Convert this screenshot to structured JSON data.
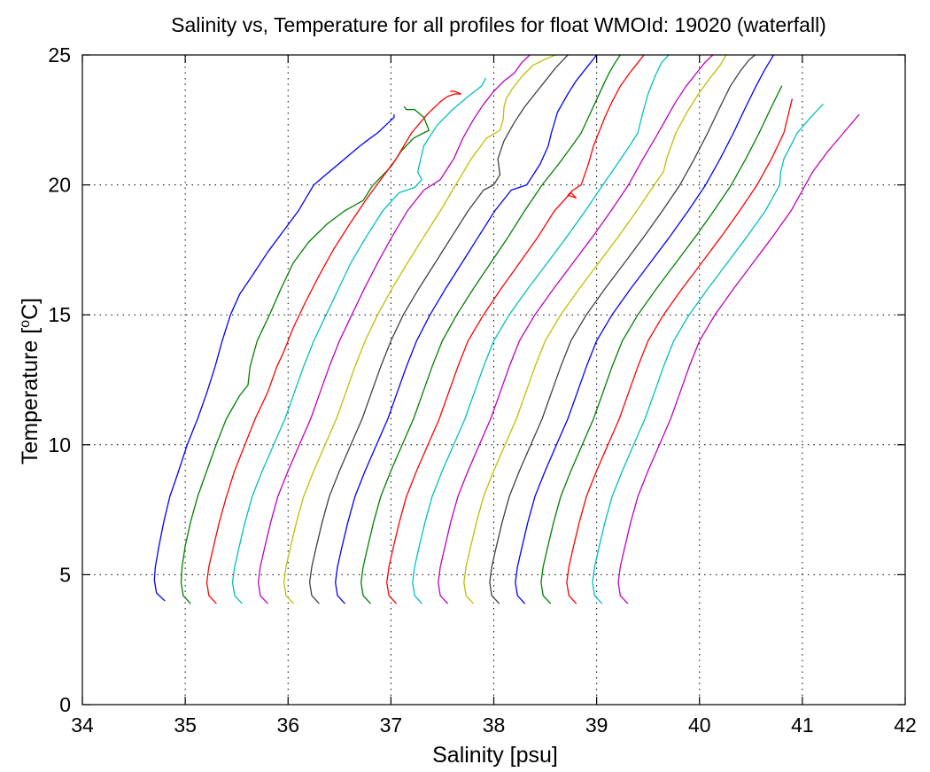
{
  "chart_data": {
    "type": "line",
    "title": "Salinity vs, Temperature for all profiles for float WMOId: 19020 (waterfall)",
    "xlabel": "Salinity [psu]",
    "ylabel_parts": [
      "Temperature [",
      "o",
      "C]"
    ],
    "xlim": [
      34,
      42
    ],
    "ylim": [
      0,
      25
    ],
    "xticks": [
      "34",
      "35",
      "36",
      "37",
      "38",
      "39",
      "40",
      "41",
      "42"
    ],
    "yticks": [
      "0",
      "5",
      "10",
      "15",
      "20",
      "25"
    ],
    "grid": true,
    "colors": [
      "#0000ff",
      "#008000",
      "#ff0000",
      "#00bfbf",
      "#bf00bf",
      "#bfbf00",
      "#404040"
    ],
    "series": [
      {
        "color": "#0000ff",
        "x": [
          34.8,
          34.72,
          34.7,
          34.71,
          34.74,
          34.79,
          34.85,
          34.92,
          35.02,
          35.12,
          35.21,
          35.29,
          35.36,
          35.44,
          35.53,
          35.65,
          35.8,
          35.95,
          36.1,
          36.25,
          36.4,
          36.55,
          36.7,
          36.8,
          36.87,
          36.95,
          37.03,
          37.03
        ],
        "y": [
          4.0,
          4.3,
          4.8,
          5.3,
          6.0,
          7.0,
          8.0,
          8.8,
          10.0,
          11.0,
          12.0,
          13.0,
          14.0,
          15.0,
          15.8,
          16.5,
          17.4,
          18.2,
          19.0,
          20.0,
          20.5,
          21.0,
          21.5,
          21.8,
          22.0,
          22.3,
          22.6,
          22.7
        ]
      },
      {
        "color": "#008000",
        "x": [
          35.05,
          34.98,
          34.96,
          34.97,
          35.0,
          35.05,
          35.12,
          35.21,
          35.3,
          35.4,
          35.53,
          35.61,
          35.63,
          35.7,
          35.82,
          35.93,
          36.05,
          36.2,
          36.38,
          36.55,
          36.73,
          36.81,
          36.83,
          37.0,
          37.1,
          37.22,
          37.37,
          37.32,
          37.23,
          37.15,
          37.13
        ],
        "y": [
          3.9,
          4.2,
          4.7,
          5.3,
          6.1,
          7.0,
          8.0,
          9.0,
          10.0,
          11.0,
          11.9,
          12.3,
          13.0,
          14.0,
          15.0,
          16.0,
          17.0,
          17.8,
          18.5,
          19.0,
          19.4,
          19.9,
          20.0,
          20.7,
          21.3,
          21.8,
          22.1,
          22.6,
          22.9,
          22.9,
          23.0
        ]
      },
      {
        "color": "#ff0000",
        "x": [
          35.3,
          35.23,
          35.21,
          35.23,
          35.27,
          35.33,
          35.4,
          35.48,
          35.58,
          35.68,
          35.8,
          35.89,
          35.95,
          36.05,
          36.17,
          36.3,
          36.44,
          36.6,
          36.77,
          36.9,
          37.05,
          37.2,
          37.35,
          37.48,
          37.55,
          37.62,
          37.68,
          37.62,
          37.58
        ],
        "y": [
          3.9,
          4.2,
          4.7,
          5.3,
          6.0,
          7.0,
          8.0,
          9.0,
          10.0,
          11.0,
          12.0,
          13.0,
          13.5,
          14.5,
          15.5,
          16.5,
          17.5,
          18.5,
          19.5,
          20.2,
          21.0,
          22.0,
          22.7,
          23.2,
          23.4,
          23.5,
          23.5,
          23.6,
          23.6
        ]
      },
      {
        "color": "#00bfbf",
        "x": [
          35.55,
          35.48,
          35.46,
          35.48,
          35.52,
          35.58,
          35.65,
          35.75,
          35.86,
          35.97,
          36.06,
          36.15,
          36.25,
          36.37,
          36.49,
          36.61,
          36.76,
          36.92,
          37.08,
          37.23,
          37.3,
          37.26,
          37.32,
          37.45,
          37.6,
          37.75,
          37.88,
          37.92
        ],
        "y": [
          3.9,
          4.2,
          4.7,
          5.3,
          6.0,
          7.0,
          8.0,
          9.0,
          10.0,
          11.0,
          12.0,
          13.0,
          14.0,
          15.0,
          16.0,
          17.0,
          18.0,
          19.0,
          19.7,
          19.9,
          20.2,
          20.5,
          21.5,
          22.3,
          22.9,
          23.4,
          23.8,
          24.1
        ]
      },
      {
        "color": "#bf00bf",
        "x": [
          35.8,
          35.73,
          35.71,
          35.73,
          35.77,
          35.83,
          35.9,
          36.0,
          36.11,
          36.22,
          36.31,
          36.4,
          36.5,
          36.62,
          36.74,
          36.87,
          37.01,
          37.16,
          37.32,
          37.48,
          37.61,
          37.7,
          37.8,
          37.9,
          38.0,
          38.1,
          38.2,
          38.27,
          38.35
        ],
        "y": [
          3.9,
          4.2,
          4.7,
          5.3,
          6.0,
          7.0,
          8.0,
          9.0,
          10.0,
          11.0,
          12.0,
          13.0,
          14.0,
          15.0,
          16.0,
          17.0,
          18.0,
          19.0,
          19.8,
          20.2,
          21.0,
          21.8,
          22.5,
          23.1,
          23.6,
          24.0,
          24.3,
          24.7,
          25.0
        ]
      },
      {
        "color": "#bfbf00",
        "x": [
          36.05,
          35.98,
          35.96,
          35.98,
          36.02,
          36.08,
          36.15,
          36.25,
          36.36,
          36.47,
          36.56,
          36.65,
          36.75,
          36.87,
          37.01,
          37.16,
          37.32,
          37.48,
          37.63,
          37.78,
          37.93,
          38.06,
          38.09,
          38.1,
          38.12,
          38.18,
          38.28,
          38.38,
          38.48,
          38.6
        ],
        "y": [
          3.9,
          4.2,
          4.7,
          5.3,
          6.0,
          7.0,
          8.0,
          9.0,
          10.0,
          11.0,
          12.0,
          13.0,
          14.0,
          15.0,
          16.0,
          17.0,
          18.0,
          19.0,
          20.0,
          21.0,
          21.8,
          22.1,
          22.5,
          23.0,
          23.3,
          23.7,
          24.2,
          24.6,
          24.8,
          25.0
        ]
      },
      {
        "color": "#404040",
        "x": [
          36.3,
          36.23,
          36.21,
          36.23,
          36.27,
          36.33,
          36.4,
          36.5,
          36.61,
          36.72,
          36.81,
          36.9,
          37.0,
          37.12,
          37.27,
          37.43,
          37.59,
          37.75,
          37.9,
          38.0,
          38.06,
          38.04,
          38.1,
          38.2,
          38.3,
          38.4,
          38.5,
          38.6,
          38.72
        ],
        "y": [
          3.9,
          4.2,
          4.7,
          5.3,
          6.0,
          7.0,
          8.0,
          9.0,
          10.0,
          11.0,
          12.0,
          13.0,
          14.0,
          15.0,
          16.0,
          17.0,
          18.0,
          19.0,
          19.8,
          20.0,
          20.4,
          21.0,
          21.7,
          22.4,
          23.0,
          23.5,
          24.0,
          24.5,
          25.0
        ]
      },
      {
        "color": "#0000ff",
        "x": [
          36.55,
          36.48,
          36.46,
          36.48,
          36.52,
          36.58,
          36.65,
          36.75,
          36.86,
          36.97,
          37.06,
          37.15,
          37.25,
          37.38,
          37.53,
          37.69,
          37.85,
          38.01,
          38.17,
          38.32,
          38.45,
          38.53,
          38.56,
          38.62,
          38.72,
          38.8,
          38.9,
          38.96,
          39.0
        ],
        "y": [
          3.9,
          4.2,
          4.7,
          5.3,
          6.0,
          7.0,
          8.0,
          9.0,
          10.0,
          11.0,
          12.0,
          13.0,
          14.0,
          15.0,
          16.0,
          17.0,
          18.0,
          19.0,
          19.8,
          20.0,
          20.8,
          21.5,
          22.0,
          22.8,
          23.5,
          24.0,
          24.5,
          24.8,
          25.0
        ]
      },
      {
        "color": "#008000",
        "x": [
          36.8,
          36.73,
          36.71,
          36.73,
          36.77,
          36.83,
          36.9,
          37.0,
          37.11,
          37.22,
          37.31,
          37.4,
          37.5,
          37.64,
          37.8,
          37.97,
          38.14,
          38.3,
          38.47,
          38.63,
          38.76,
          38.85,
          38.92,
          38.99,
          39.06,
          39.12,
          39.18,
          39.23
        ],
        "y": [
          3.9,
          4.2,
          4.7,
          5.3,
          6.0,
          7.0,
          8.0,
          9.0,
          10.0,
          11.0,
          12.0,
          13.0,
          14.0,
          15.0,
          16.0,
          17.0,
          18.0,
          19.0,
          20.0,
          20.8,
          21.5,
          22.0,
          22.6,
          23.2,
          23.8,
          24.3,
          24.7,
          25.0
        ]
      },
      {
        "color": "#ff0000",
        "x": [
          37.05,
          36.98,
          36.96,
          36.98,
          37.02,
          37.08,
          37.15,
          37.25,
          37.36,
          37.47,
          37.56,
          37.65,
          37.75,
          37.9,
          38.07,
          38.25,
          38.43,
          38.59,
          38.75,
          38.8,
          38.72,
          38.77,
          38.85,
          38.92,
          38.97,
          39.02,
          39.08,
          39.15,
          39.23,
          39.32,
          39.4,
          39.46
        ],
        "y": [
          3.9,
          4.2,
          4.7,
          5.3,
          6.0,
          7.0,
          8.0,
          9.0,
          10.0,
          11.0,
          12.0,
          13.0,
          14.0,
          15.0,
          16.0,
          17.0,
          18.0,
          19.0,
          19.7,
          19.5,
          19.6,
          19.8,
          20.0,
          20.8,
          21.5,
          22.0,
          22.6,
          23.2,
          23.8,
          24.3,
          24.7,
          25.0
        ]
      },
      {
        "color": "#00bfbf",
        "x": [
          37.3,
          37.23,
          37.21,
          37.23,
          37.27,
          37.33,
          37.4,
          37.5,
          37.61,
          37.72,
          37.81,
          37.9,
          38.0,
          38.15,
          38.33,
          38.52,
          38.71,
          38.89,
          39.06,
          39.2,
          39.32,
          39.4,
          39.45,
          39.5,
          39.57,
          39.63,
          39.7
        ],
        "y": [
          3.9,
          4.2,
          4.7,
          5.3,
          6.0,
          7.0,
          8.0,
          9.0,
          10.0,
          11.0,
          12.0,
          13.0,
          14.0,
          15.0,
          16.0,
          17.0,
          18.0,
          19.0,
          20.0,
          20.8,
          21.5,
          22.0,
          22.8,
          23.5,
          24.2,
          24.7,
          25.0
        ]
      },
      {
        "color": "#bf00bf",
        "x": [
          37.55,
          37.48,
          37.46,
          37.48,
          37.52,
          37.58,
          37.65,
          37.75,
          37.86,
          37.97,
          38.06,
          38.15,
          38.25,
          38.4,
          38.58,
          38.77,
          38.96,
          39.14,
          39.31,
          39.45,
          39.57,
          39.67,
          39.77,
          39.87,
          39.97,
          40.05,
          40.13
        ],
        "y": [
          3.9,
          4.2,
          4.7,
          5.3,
          6.0,
          7.0,
          8.0,
          9.0,
          10.0,
          11.0,
          12.0,
          13.0,
          14.0,
          15.0,
          16.0,
          17.0,
          18.0,
          19.0,
          20.0,
          21.0,
          21.8,
          22.5,
          23.2,
          23.8,
          24.3,
          24.7,
          25.0
        ]
      },
      {
        "color": "#bfbf00",
        "x": [
          37.8,
          37.73,
          37.71,
          37.73,
          37.77,
          37.83,
          37.9,
          38.0,
          38.11,
          38.22,
          38.31,
          38.4,
          38.5,
          38.65,
          38.83,
          39.02,
          39.21,
          39.39,
          39.56,
          39.65,
          39.68,
          39.77,
          39.88,
          39.99,
          40.1,
          40.2,
          40.26
        ],
        "y": [
          3.9,
          4.2,
          4.7,
          5.3,
          6.0,
          7.0,
          8.0,
          9.0,
          10.0,
          11.0,
          12.0,
          13.0,
          14.0,
          15.0,
          16.0,
          17.0,
          18.0,
          19.0,
          20.0,
          20.5,
          21.0,
          22.0,
          22.8,
          23.5,
          24.1,
          24.6,
          25.0
        ]
      },
      {
        "color": "#404040",
        "x": [
          38.05,
          37.98,
          37.96,
          37.98,
          38.02,
          38.08,
          38.15,
          38.25,
          38.36,
          38.47,
          38.56,
          38.65,
          38.75,
          38.9,
          39.08,
          39.27,
          39.46,
          39.64,
          39.81,
          39.95,
          40.08,
          40.2,
          40.3,
          40.4,
          40.48,
          40.54
        ],
        "y": [
          3.9,
          4.2,
          4.7,
          5.3,
          6.0,
          7.0,
          8.0,
          9.0,
          10.0,
          11.0,
          12.0,
          13.0,
          14.0,
          15.0,
          16.0,
          17.0,
          18.0,
          19.0,
          20.0,
          21.0,
          22.0,
          23.0,
          23.8,
          24.4,
          24.8,
          25.0
        ]
      },
      {
        "color": "#0000ff",
        "x": [
          38.3,
          38.23,
          38.21,
          38.23,
          38.27,
          38.33,
          38.4,
          38.5,
          38.61,
          38.72,
          38.81,
          38.9,
          39.0,
          39.15,
          39.33,
          39.52,
          39.71,
          39.89,
          40.06,
          40.2,
          40.33,
          40.45,
          40.55,
          40.63,
          40.69,
          40.72
        ],
        "y": [
          3.9,
          4.2,
          4.7,
          5.3,
          6.0,
          7.0,
          8.0,
          9.0,
          10.0,
          11.0,
          12.0,
          13.0,
          14.0,
          15.0,
          16.0,
          17.0,
          18.0,
          19.0,
          20.0,
          21.0,
          22.0,
          23.0,
          23.8,
          24.4,
          24.8,
          25.0
        ]
      },
      {
        "color": "#008000",
        "x": [
          38.55,
          38.48,
          38.46,
          38.48,
          38.52,
          38.58,
          38.65,
          38.75,
          38.86,
          38.97,
          39.06,
          39.15,
          39.25,
          39.4,
          39.58,
          39.77,
          39.96,
          40.14,
          40.31,
          40.45,
          40.58,
          40.7,
          40.8
        ],
        "y": [
          3.9,
          4.2,
          4.7,
          5.3,
          6.0,
          7.0,
          8.0,
          9.0,
          10.0,
          11.0,
          12.0,
          13.0,
          14.0,
          15.0,
          16.0,
          17.0,
          18.0,
          19.0,
          20.0,
          21.0,
          22.0,
          23.0,
          23.8
        ]
      },
      {
        "color": "#ff0000",
        "x": [
          38.8,
          38.73,
          38.71,
          38.73,
          38.77,
          38.83,
          38.9,
          39.0,
          39.11,
          39.22,
          39.31,
          39.4,
          39.5,
          39.65,
          39.83,
          40.02,
          40.21,
          40.39,
          40.56,
          40.7,
          40.82,
          40.9
        ],
        "y": [
          3.9,
          4.2,
          4.7,
          5.3,
          6.0,
          7.0,
          8.0,
          9.0,
          10.0,
          11.0,
          12.0,
          13.0,
          14.0,
          15.0,
          16.0,
          17.0,
          18.0,
          19.0,
          20.0,
          21.0,
          22.0,
          23.3
        ]
      },
      {
        "color": "#00bfbf",
        "x": [
          39.05,
          38.98,
          38.96,
          38.98,
          39.02,
          39.08,
          39.15,
          39.25,
          39.36,
          39.47,
          39.56,
          39.65,
          39.75,
          39.9,
          40.08,
          40.27,
          40.46,
          40.64,
          40.78,
          40.79,
          40.82,
          40.95,
          41.08,
          41.2
        ],
        "y": [
          3.9,
          4.2,
          4.7,
          5.3,
          6.0,
          7.0,
          8.0,
          9.0,
          10.0,
          11.0,
          12.0,
          13.0,
          14.0,
          15.0,
          16.0,
          17.0,
          18.0,
          19.0,
          20.0,
          20.5,
          21.0,
          22.0,
          22.6,
          23.1
        ]
      },
      {
        "color": "#bf00bf",
        "x": [
          39.3,
          39.23,
          39.21,
          39.23,
          39.27,
          39.33,
          39.4,
          39.5,
          39.61,
          39.72,
          39.81,
          39.9,
          40.0,
          40.15,
          40.33,
          40.52,
          40.71,
          40.89,
          41.03,
          41.1,
          41.25,
          41.4,
          41.55
        ],
        "y": [
          3.9,
          4.2,
          4.7,
          5.3,
          6.0,
          7.0,
          8.0,
          9.0,
          10.0,
          11.0,
          12.0,
          13.0,
          14.0,
          15.0,
          16.0,
          17.0,
          18.0,
          19.0,
          20.0,
          20.5,
          21.3,
          22.0,
          22.7
        ]
      }
    ]
  }
}
